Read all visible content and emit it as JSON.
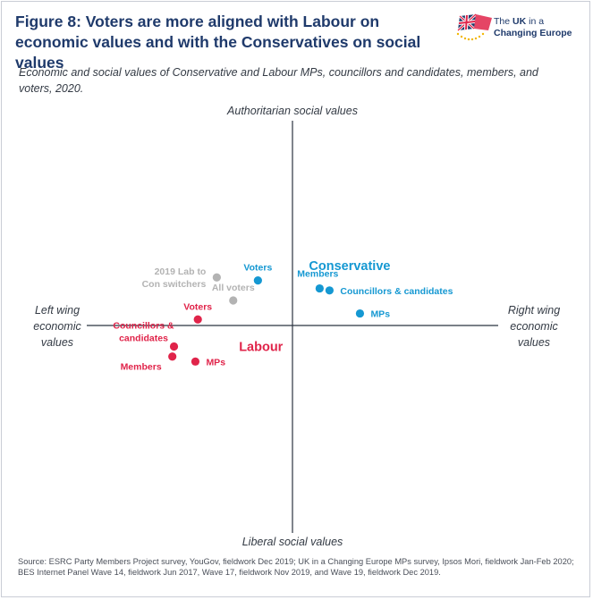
{
  "title": "Figure 8: Voters are more aligned with Labour on economic values and with the Conservatives on social values",
  "logo": {
    "line1_prefix": "The ",
    "line1_bold": "UK",
    "line1_suffix": " in a",
    "line2": "Changing Europe"
  },
  "subtitle": "Economic and social values of Conservative and Labour MPs, councillors and candidates, members, and voters, 2020.",
  "source": "Source: ESRC Party Members Project survey, YouGov, fieldwork Dec 2019; UK in a Changing Europe MPs survey, Ipsos Mori, fieldwork Jan-Feb 2020; BES Internet Panel Wave 14, fieldwork Jun 2017, Wave 17, fieldwork Nov 2019, and Wave 19, fieldwork Dec 2019.",
  "colors": {
    "conservative": "#1598d2",
    "labour": "#e0244a",
    "all_voters": "#b3b3b3",
    "axis": "#2b3440",
    "title": "#1f3a6b"
  },
  "chart_data": {
    "type": "scatter",
    "axis_labels": {
      "top": "Authoritarian social values",
      "bottom": "Liberal social values",
      "left": [
        "Left wing",
        "economic",
        "values"
      ],
      "right": [
        "Right wing",
        "economic",
        "values"
      ]
    },
    "xlim": [
      -10,
      10
    ],
    "ylim": [
      -10,
      10
    ],
    "group_labels": [
      {
        "text": "Conservative",
        "x": 2.0,
        "y": 6.0,
        "color_key": "conservative"
      },
      {
        "text": "Labour",
        "x": -6.5,
        "y": -2.1,
        "color_key": "labour"
      }
    ],
    "series": [
      {
        "name": "Conservative",
        "color_key": "conservative",
        "points": [
          {
            "label": "Voters",
            "x": -4.2,
            "y": 4.5,
            "label_pos": "above"
          },
          {
            "label": "Members",
            "x": 3.3,
            "y": 3.7,
            "label_pos": "above-left"
          },
          {
            "label": "Councillors & candidates",
            "x": 4.5,
            "y": 3.5,
            "label_pos": "right"
          },
          {
            "label": "MPs",
            "x": 8.2,
            "y": 1.2,
            "label_pos": "right"
          }
        ]
      },
      {
        "name": "Labour",
        "color_key": "labour",
        "points": [
          {
            "label": "Voters",
            "x": -11.5,
            "y": 0.6,
            "label_pos": "above"
          },
          {
            "label": "Councillors & candidates",
            "x": -14.4,
            "y": -2.1,
            "label_pos": "above-left"
          },
          {
            "label": "Members",
            "x": -14.6,
            "y": -3.1,
            "label_pos": "left"
          },
          {
            "label": "MPs",
            "x": -11.8,
            "y": -3.6,
            "label_pos": "right"
          }
        ]
      },
      {
        "name": "All voters",
        "color_key": "all_voters",
        "points": [
          {
            "label": "2019 Lab to Con switchers",
            "x": -9.2,
            "y": 4.8,
            "label_pos": "left"
          },
          {
            "label": "All voters",
            "x": -7.2,
            "y": 2.5,
            "label_pos": "above"
          }
        ]
      }
    ]
  }
}
